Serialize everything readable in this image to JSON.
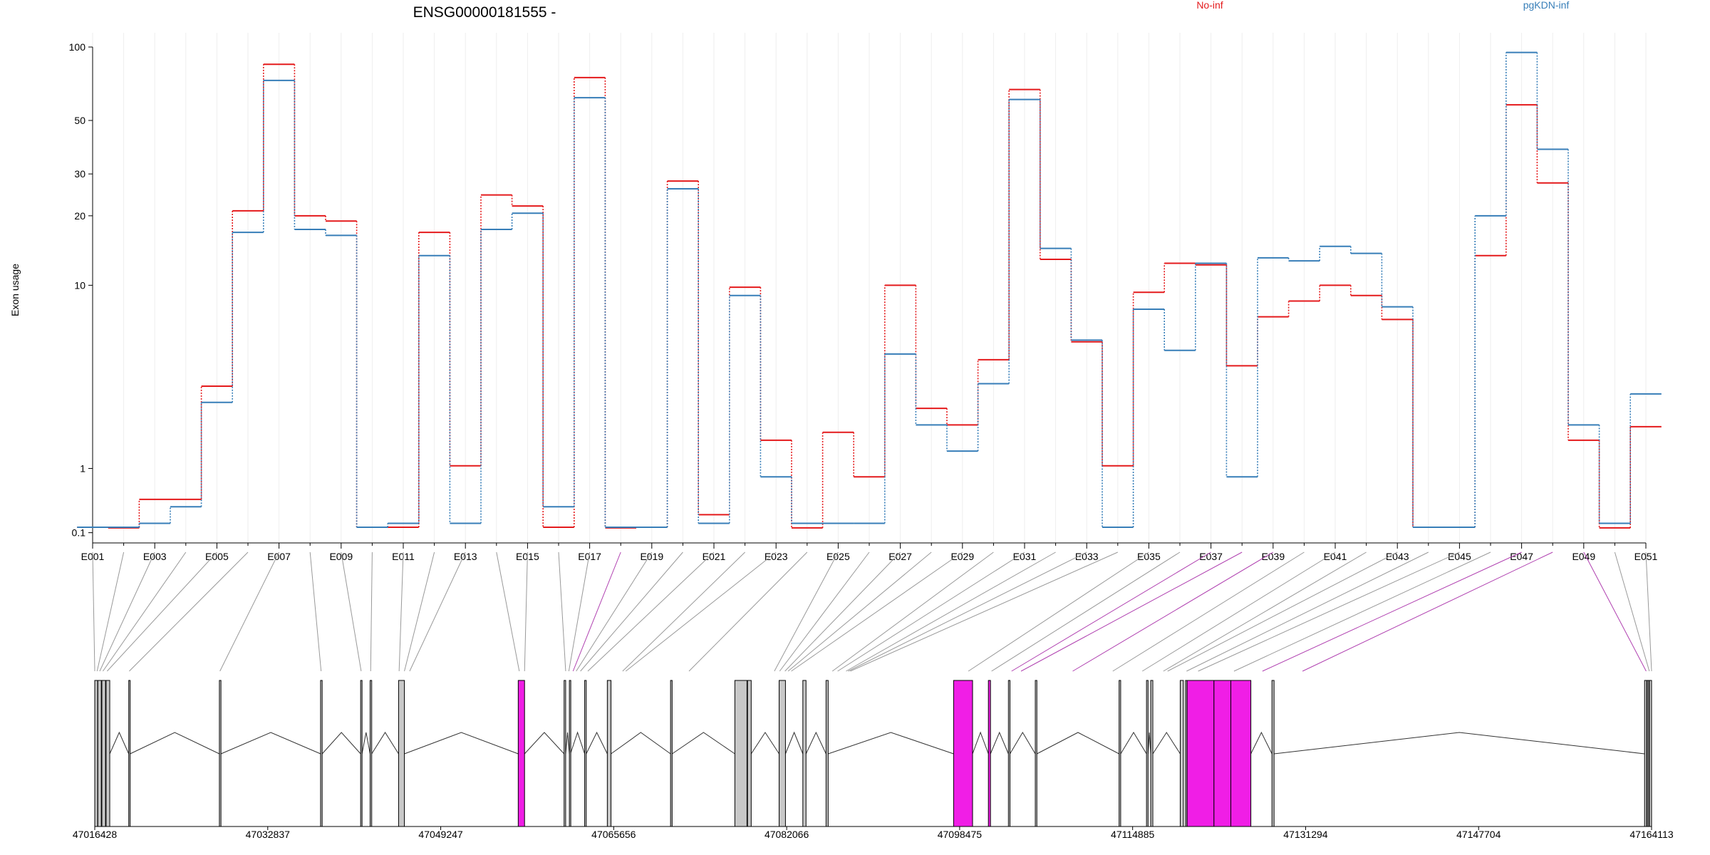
{
  "title": "ENSG00000181555 -",
  "ylabel": "Exon usage",
  "legend": [
    {
      "name": "No-inf",
      "color": "#e41a1c"
    },
    {
      "name": "pgKDN-inf",
      "color": "#377eb8"
    }
  ],
  "colors": {
    "highlight_exon": "#f01ee6",
    "normal_exon": "#c8c8c8",
    "exon_outline": "#000000",
    "connector": "#999999",
    "highlight_connector": "#b040b0",
    "grid": "#eeeeee"
  },
  "chart_data": {
    "type": "line",
    "title": "ENSG00000181555 -",
    "ylabel": "Exon usage",
    "yscale": "log(x+1)",
    "ylim": [
      0,
      100
    ],
    "yticks": [
      0.1,
      1,
      10,
      20,
      30,
      50,
      100
    ],
    "ytick_labels": [
      "0.1",
      "1",
      "10",
      "20",
      "30",
      "50",
      "100"
    ],
    "x_tick_labels": [
      "E001",
      "E003",
      "E005",
      "E007",
      "E009",
      "E011",
      "E013",
      "E015",
      "E017",
      "E019",
      "E021",
      "E023",
      "E025",
      "E027",
      "E029",
      "E031",
      "E033",
      "E035",
      "E037",
      "E039",
      "E041",
      "E043",
      "E045",
      "E047",
      "E049",
      "E051"
    ],
    "categories": [
      "E001",
      "E002",
      "E003",
      "E004",
      "E005",
      "E006",
      "E007",
      "E008",
      "E009",
      "E010",
      "E011",
      "E012",
      "E013",
      "E014",
      "E015",
      "E016",
      "E017",
      "E018",
      "E019",
      "E020",
      "E021",
      "E022",
      "E023",
      "E024",
      "E025",
      "E026",
      "E027",
      "E028",
      "E029",
      "E030",
      "E031",
      "E032",
      "E033",
      "E034",
      "E035",
      "E036",
      "E037",
      "E038",
      "E039",
      "E040",
      "E041",
      "E042",
      "E043",
      "E044",
      "E045",
      "E046",
      "E047",
      "E048",
      "E049",
      "E050",
      "E051"
    ],
    "series": [
      {
        "name": "No-inf",
        "color": "#e41a1c",
        "values": [
          0,
          0.15,
          0.5,
          0.5,
          3.3,
          21,
          85,
          20,
          19,
          0,
          0,
          17,
          1.05,
          24.5,
          22,
          0,
          75,
          0.15,
          0,
          28,
          0.3,
          9.8,
          1.6,
          0.15,
          1.8,
          0.85,
          10,
          2.5,
          2.0,
          4.5,
          67,
          13,
          5.5,
          1.05,
          9.3,
          12.5,
          12.3,
          4.2,
          7.2,
          8.5,
          10,
          9,
          7,
          0,
          0,
          13.5,
          58,
          27.5,
          1.6,
          0.15,
          1.95
        ]
      },
      {
        "name": "pgKDN-inf",
        "color": "#377eb8",
        "values": [
          0,
          0,
          0.2,
          0.4,
          2.7,
          17,
          73,
          17.5,
          16.5,
          0,
          0.2,
          13.5,
          0.2,
          17.5,
          20.5,
          0.4,
          62,
          0,
          0,
          26,
          0.2,
          9,
          0.85,
          0.2,
          0.2,
          0.2,
          4.8,
          2.0,
          1.35,
          3.4,
          61,
          14.5,
          5.6,
          0,
          7.8,
          5,
          12.5,
          0.85,
          13.2,
          12.8,
          14.8,
          13.8,
          8,
          0,
          0,
          20,
          95,
          38,
          2.0,
          0.2,
          3.0
        ]
      }
    ],
    "gene_model": {
      "coordinate_labels": [
        "47016428",
        "47032837",
        "47049247",
        "47065656",
        "47082066",
        "47098475",
        "47114885",
        "47131294",
        "47147704",
        "47164113"
      ],
      "coord_start": 47016428,
      "coord_end": 47164113,
      "exon_gene_coords": [
        47016428,
        47016650,
        47016900,
        47017200,
        47017600,
        47019700,
        47028300,
        47037900,
        47041700,
        47042600,
        47045300,
        47045800,
        47046300,
        47056700,
        47057200,
        47061100,
        47061400,
        47061800,
        47062100,
        47062500,
        47063200,
        47066500,
        47066800,
        47072800,
        47080900,
        47081400,
        47081900,
        47082200,
        47082500,
        47086400,
        47086900,
        47087700,
        47087900,
        47088100,
        47099300,
        47101500,
        47103400,
        47104300,
        47109200,
        47113000,
        47115800,
        47117800,
        47118200,
        47120000,
        47121100,
        47124500,
        47127200,
        47131000,
        47163600,
        47163900,
        47164113
      ],
      "highlighted_exons": [
        17,
        36,
        37,
        38,
        46,
        47,
        48
      ],
      "exons": [
        {
          "start": 47016428,
          "end": 47016700,
          "highlight": false
        },
        {
          "start": 47016720,
          "end": 47017050,
          "highlight": false
        },
        {
          "start": 47017100,
          "end": 47017450,
          "highlight": false
        },
        {
          "start": 47017500,
          "end": 47017850,
          "highlight": false
        },
        {
          "start": 47019650,
          "end": 47019780,
          "highlight": false
        },
        {
          "start": 47028250,
          "end": 47028400,
          "highlight": false
        },
        {
          "start": 47037850,
          "end": 47038000,
          "highlight": false
        },
        {
          "start": 47041650,
          "end": 47041780,
          "highlight": false
        },
        {
          "start": 47042550,
          "end": 47042700,
          "highlight": false
        },
        {
          "start": 47045250,
          "end": 47045800,
          "highlight": false
        },
        {
          "start": 47056600,
          "end": 47057200,
          "highlight": true
        },
        {
          "start": 47060950,
          "end": 47061100,
          "highlight": false
        },
        {
          "start": 47061450,
          "end": 47061550,
          "highlight": false
        },
        {
          "start": 47062900,
          "end": 47063050,
          "highlight": false
        },
        {
          "start": 47065050,
          "end": 47065400,
          "highlight": false
        },
        {
          "start": 47071050,
          "end": 47071200,
          "highlight": false
        },
        {
          "start": 47077150,
          "end": 47078300,
          "highlight": false
        },
        {
          "start": 47078350,
          "end": 47078700,
          "highlight": false
        },
        {
          "start": 47081350,
          "end": 47081950,
          "highlight": false
        },
        {
          "start": 47083600,
          "end": 47083900,
          "highlight": false
        },
        {
          "start": 47085800,
          "end": 47086000,
          "highlight": false
        },
        {
          "start": 47097900,
          "end": 47099700,
          "highlight": true
        },
        {
          "start": 47101200,
          "end": 47101400,
          "highlight": true
        },
        {
          "start": 47103100,
          "end": 47103250,
          "highlight": false
        },
        {
          "start": 47105650,
          "end": 47105800,
          "highlight": false
        },
        {
          "start": 47113600,
          "end": 47113750,
          "highlight": false
        },
        {
          "start": 47116200,
          "end": 47116350,
          "highlight": false
        },
        {
          "start": 47116600,
          "end": 47116800,
          "highlight": false
        },
        {
          "start": 47119400,
          "end": 47119700,
          "highlight": false
        },
        {
          "start": 47119900,
          "end": 47120000,
          "highlight": false
        },
        {
          "start": 47120050,
          "end": 47122600,
          "highlight": true
        },
        {
          "start": 47122600,
          "end": 47124200,
          "highlight": true
        },
        {
          "start": 47124200,
          "end": 47126100,
          "highlight": true
        },
        {
          "start": 47128100,
          "end": 47128300,
          "highlight": false
        },
        {
          "start": 47163450,
          "end": 47163650,
          "highlight": false
        },
        {
          "start": 47163700,
          "end": 47163850,
          "highlight": false
        },
        {
          "start": 47163900,
          "end": 47164113,
          "highlight": false
        }
      ]
    }
  }
}
